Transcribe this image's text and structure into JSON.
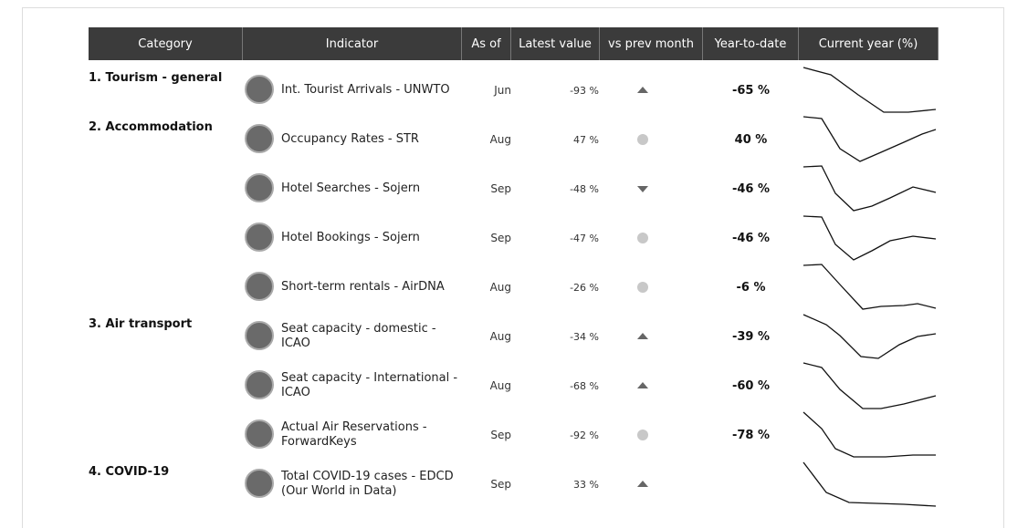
{
  "header": {
    "columns": [
      "Category",
      "Indicator",
      "As of",
      "Latest value",
      "vs prev month",
      "Year-to-date",
      "Current year (%)"
    ]
  },
  "table": {
    "rows": [
      {
        "category": "1. Tourism - general",
        "indicator": "Int. Tourist Arrivals - UNWTO",
        "as_of": "Jun",
        "latest": "-93 %",
        "vs_prev_month": "up",
        "ytd": "-65 %"
      },
      {
        "category": "2. Accommodation",
        "indicator": "Occupancy Rates - STR",
        "as_of": "Aug",
        "latest": "47 %",
        "vs_prev_month": "flat",
        "ytd": "40 %"
      },
      {
        "indicator": "Hotel Searches - Sojern",
        "as_of": "Sep",
        "latest": "-48 %",
        "vs_prev_month": "down",
        "ytd": "-46 %"
      },
      {
        "indicator": "Hotel Bookings - Sojern",
        "as_of": "Sep",
        "latest": "-47 %",
        "vs_prev_month": "flat",
        "ytd": "-46 %"
      },
      {
        "indicator": "Short-term rentals - AirDNA",
        "as_of": "Aug",
        "latest": "-26 %",
        "vs_prev_month": "flat",
        "ytd": "-6 %"
      },
      {
        "category": "3. Air transport",
        "indicator": "Seat capacity - domestic - ICAO",
        "as_of": "Aug",
        "latest": "-34 %",
        "vs_prev_month": "up",
        "ytd": "-39 %"
      },
      {
        "indicator": "Seat capacity - International - ICAO",
        "as_of": "Aug",
        "latest": "-68 %",
        "vs_prev_month": "up",
        "ytd": "-60 %"
      },
      {
        "indicator": "Actual Air Reservations - ForwardKeys",
        "as_of": "Sep",
        "latest": "-92 %",
        "vs_prev_month": "flat",
        "ytd": "-78 %"
      },
      {
        "category": "4. COVID-19",
        "indicator": "Total COVID-19 cases - EDCD (Our World in Data)",
        "as_of": "Sep",
        "latest": "33 %",
        "vs_prev_month": "up",
        "ytd": ""
      }
    ]
  }
}
